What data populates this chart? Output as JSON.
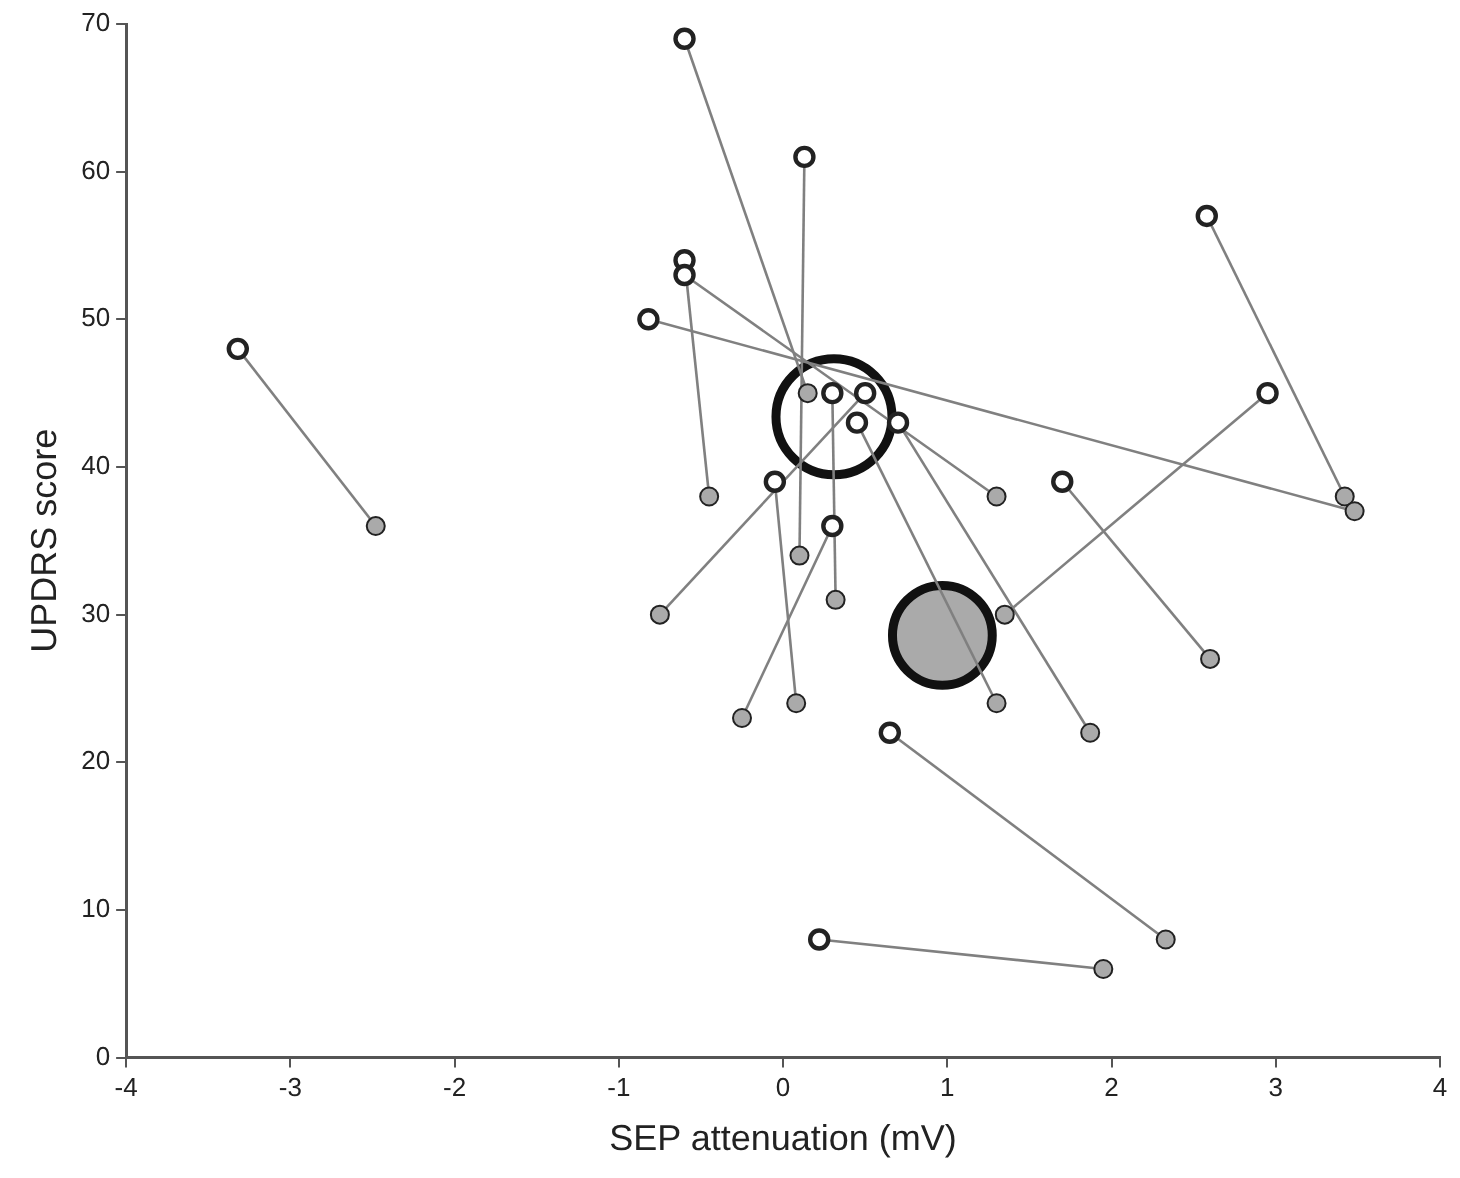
{
  "chart_data": {
    "type": "scatter",
    "xlabel": "SEP attenuation (mV)",
    "ylabel": "UPDRS score",
    "xlim": [
      -4,
      4
    ],
    "xticks": [
      -4,
      -3,
      -2,
      -1,
      0,
      1,
      2,
      3,
      4
    ],
    "ylim": [
      0,
      70
    ],
    "yticks": [
      0,
      10,
      20,
      30,
      40,
      50,
      60,
      70
    ],
    "grid": false,
    "legend": false,
    "marker": "circle",
    "series": [
      {
        "type": "scatter",
        "color": "#ffffff",
        "x": [
          -3.32,
          0.65,
          0.22,
          2.58,
          -0.82,
          1.7,
          2.95,
          -0.6,
          -0.6,
          0.13,
          0.3,
          -0.05,
          0.5,
          0.3,
          0.45,
          0.7,
          -0.6
        ],
        "values": [
          48,
          22,
          8,
          57,
          50,
          39,
          45,
          69,
          54,
          61,
          36,
          39,
          45,
          45,
          43,
          43,
          53
        ]
      },
      {
        "type": "scatter",
        "color": "#aaaaaa",
        "x": [
          -2.48,
          2.33,
          1.95,
          3.42,
          3.48,
          2.6,
          1.35,
          0.15,
          -0.45,
          0.1,
          -0.25,
          0.08,
          -0.75,
          0.32,
          1.3,
          1.87,
          1.3
        ],
        "values": [
          36,
          8,
          6,
          38,
          37,
          27,
          30,
          45,
          38,
          34,
          23,
          24,
          30,
          31,
          24,
          22,
          38
        ]
      },
      {
        "type": "line",
        "marker": "none",
        "color": "#808080",
        "x": [
          -3.32,
          -2.48
        ],
        "values": [
          48,
          36
        ]
      },
      {
        "type": "line",
        "marker": "none",
        "color": "#808080",
        "x": [
          0.65,
          2.33
        ],
        "values": [
          22,
          8
        ]
      },
      {
        "type": "line",
        "marker": "none",
        "color": "#808080",
        "x": [
          0.22,
          1.95
        ],
        "values": [
          8,
          6
        ]
      },
      {
        "type": "line",
        "marker": "none",
        "color": "#808080",
        "x": [
          2.58,
          3.42
        ],
        "values": [
          57,
          38
        ]
      },
      {
        "type": "line",
        "marker": "none",
        "color": "#808080",
        "x": [
          -0.82,
          3.48
        ],
        "values": [
          50,
          37
        ]
      },
      {
        "type": "line",
        "marker": "none",
        "color": "#808080",
        "x": [
          1.7,
          2.6
        ],
        "values": [
          39,
          27
        ]
      },
      {
        "type": "line",
        "marker": "none",
        "color": "#808080",
        "x": [
          2.95,
          1.35
        ],
        "values": [
          45,
          30
        ]
      },
      {
        "type": "line",
        "marker": "none",
        "color": "#808080",
        "x": [
          -0.6,
          0.15
        ],
        "values": [
          69,
          45
        ]
      },
      {
        "type": "line",
        "marker": "none",
        "color": "#808080",
        "x": [
          -0.6,
          -0.45
        ],
        "values": [
          54,
          38
        ]
      },
      {
        "type": "line",
        "marker": "none",
        "color": "#808080",
        "x": [
          0.13,
          0.1
        ],
        "values": [
          61,
          34
        ]
      },
      {
        "type": "line",
        "marker": "none",
        "color": "#808080",
        "x": [
          0.3,
          -0.25
        ],
        "values": [
          36,
          23
        ]
      },
      {
        "type": "line",
        "marker": "none",
        "color": "#808080",
        "x": [
          -0.05,
          0.08
        ],
        "values": [
          39,
          24
        ]
      },
      {
        "type": "line",
        "marker": "none",
        "color": "#808080",
        "x": [
          0.5,
          -0.75
        ],
        "values": [
          45,
          30
        ]
      },
      {
        "type": "line",
        "marker": "none",
        "color": "#808080",
        "x": [
          0.3,
          0.32
        ],
        "values": [
          45,
          31
        ]
      },
      {
        "type": "line",
        "marker": "none",
        "color": "#808080",
        "x": [
          0.45,
          1.3
        ],
        "values": [
          43,
          24
        ]
      },
      {
        "type": "line",
        "marker": "none",
        "color": "#808080",
        "x": [
          0.7,
          1.87
        ],
        "values": [
          43,
          22
        ]
      },
      {
        "type": "line",
        "marker": "none",
        "color": "#808080",
        "x": [
          -0.6,
          1.3
        ],
        "values": [
          53,
          38
        ]
      },
      {
        "type": "bubble",
        "color": "#ffffff",
        "x": [
          0.31
        ],
        "values": [
          43.4
        ],
        "sizes": [
          1
        ]
      },
      {
        "type": "bubble",
        "color": "#aaaaaa",
        "x": [
          0.97
        ],
        "values": [
          28.6
        ],
        "sizes": [
          0.74
        ]
      }
    ]
  }
}
